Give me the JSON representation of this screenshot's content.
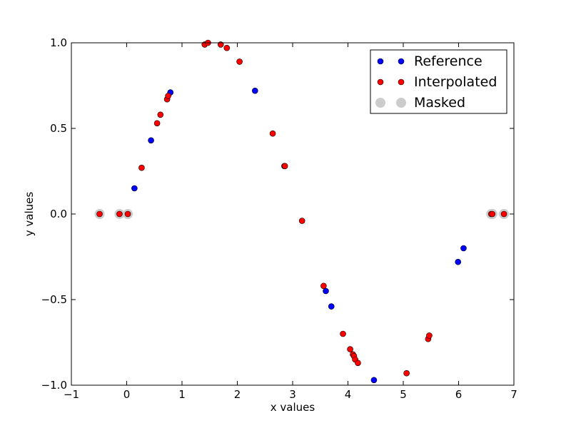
{
  "chart_data": {
    "type": "scatter",
    "title": "",
    "xlabel": "x values",
    "ylabel": "y values",
    "xlim": [
      -1,
      7
    ],
    "ylim": [
      -1.0,
      1.0
    ],
    "xticks": [
      "−1",
      "0",
      "1",
      "2",
      "3",
      "4",
      "5",
      "6",
      "7"
    ],
    "xtick_values": [
      -1,
      0,
      1,
      2,
      3,
      4,
      5,
      6,
      7
    ],
    "yticks": [
      "−1.0",
      "−0.5",
      "0.0",
      "0.5",
      "1.0"
    ],
    "ytick_values": [
      -1.0,
      -0.5,
      0.0,
      0.5,
      1.0
    ],
    "grid": false,
    "legend_position": "top-right",
    "series": [
      {
        "name": "Reference",
        "color": "#0000ff",
        "points": [
          [
            0.14,
            0.15
          ],
          [
            0.44,
            0.43
          ],
          [
            0.79,
            0.71
          ],
          [
            2.32,
            0.72
          ],
          [
            3.6,
            -0.45
          ],
          [
            3.7,
            -0.54
          ],
          [
            4.47,
            -0.97
          ],
          [
            5.99,
            -0.28
          ],
          [
            6.09,
            -0.2
          ]
        ]
      },
      {
        "name": "Interpolated",
        "color": "#ff0000",
        "points": [
          [
            -0.49,
            0.0
          ],
          [
            -0.13,
            0.0
          ],
          [
            0.02,
            0.0
          ],
          [
            0.27,
            0.27
          ],
          [
            0.55,
            0.53
          ],
          [
            0.61,
            0.58
          ],
          [
            0.73,
            0.67
          ],
          [
            0.75,
            0.69
          ],
          [
            1.41,
            0.99
          ],
          [
            1.47,
            1.0
          ],
          [
            1.7,
            0.99
          ],
          [
            1.81,
            0.97
          ],
          [
            2.04,
            0.89
          ],
          [
            2.64,
            0.47
          ],
          [
            2.85,
            0.28
          ],
          [
            2.86,
            0.28
          ],
          [
            3.17,
            -0.04
          ],
          [
            3.56,
            -0.42
          ],
          [
            3.91,
            -0.7
          ],
          [
            4.04,
            -0.79
          ],
          [
            4.09,
            -0.82
          ],
          [
            4.11,
            -0.83
          ],
          [
            4.13,
            -0.85
          ],
          [
            4.18,
            -0.87
          ],
          [
            5.06,
            -0.93
          ],
          [
            5.45,
            -0.73
          ],
          [
            5.47,
            -0.71
          ],
          [
            6.59,
            0.0
          ],
          [
            6.61,
            0.0
          ],
          [
            6.82,
            0.0
          ]
        ]
      },
      {
        "name": "Masked",
        "color": "#cccccc",
        "points": [
          [
            -0.49,
            0.0
          ],
          [
            -0.13,
            0.0
          ],
          [
            0.02,
            0.0
          ],
          [
            6.59,
            0.0
          ],
          [
            6.61,
            0.0
          ],
          [
            6.82,
            0.0
          ]
        ]
      }
    ]
  }
}
